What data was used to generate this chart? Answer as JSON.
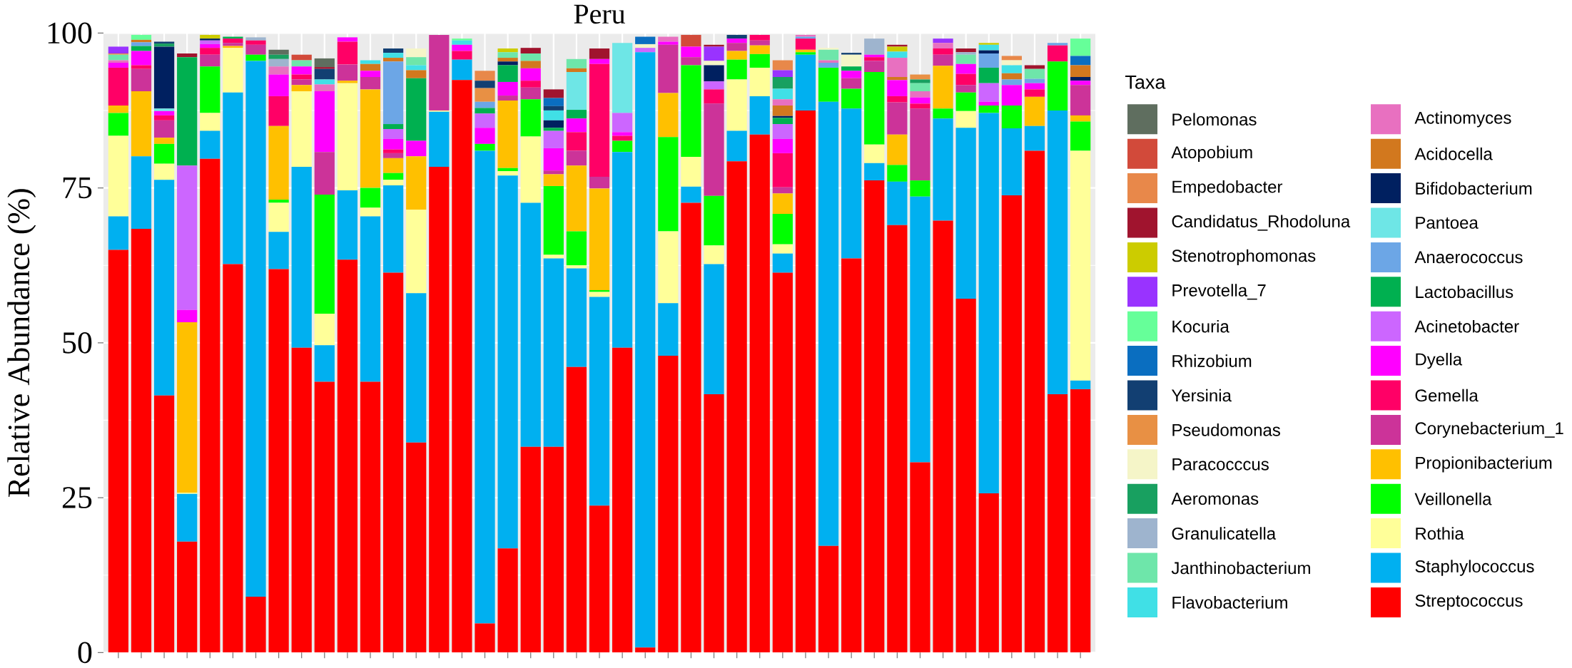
{
  "chart_data": {
    "type": "bar",
    "stacked": true,
    "title": "Peru",
    "ylabel": "Relative Abundance (%)",
    "legend_title": "Taxa",
    "legend": "right",
    "grid": true,
    "tick_labels": "y",
    "categories": [
      null,
      null,
      null,
      null,
      null,
      null,
      null,
      null,
      null,
      null,
      null,
      null,
      null,
      null,
      null,
      null,
      null,
      null,
      null,
      null,
      null,
      null,
      null,
      null,
      null,
      null,
      null,
      null,
      null,
      null,
      null,
      null,
      null,
      null,
      null,
      null,
      null,
      null,
      null,
      null,
      null,
      null,
      null
    ],
    "ylim": [
      0,
      100
    ],
    "yticks": [
      0,
      25,
      50,
      75,
      100
    ],
    "series": [
      {
        "name": "Streptococcus",
        "color": "#FF0000",
        "values": [
          65,
          68.4,
          41.5,
          17.9,
          79.7,
          62.7,
          9.0,
          61.9,
          49.2,
          43.7,
          63.4,
          43.7,
          61.3,
          33.9,
          78.4,
          92.4,
          4.7,
          16.8,
          33.2,
          33.2,
          46.1,
          23.7,
          49.2,
          0.8,
          47.9,
          72.6,
          41.7,
          79.3,
          83.6,
          61.3,
          87.5,
          17.2,
          63.6,
          76.2,
          69.0,
          30.7,
          69.7,
          57.1,
          25.7,
          73.8,
          81.0,
          41.7,
          42.5
        ]
      },
      {
        "name": "Staphylococcus",
        "color": "#00B0F0",
        "values": [
          5.4,
          11.7,
          34.8,
          7.7,
          4.5,
          27.7,
          86.5,
          6.0,
          29.2,
          5.9,
          11.2,
          26.7,
          14.1,
          24.1,
          8.9,
          3.3,
          76.3,
          60.2,
          39.4,
          30.4,
          15.9,
          33.7,
          31.6,
          96.1,
          8.5,
          2.6,
          21.0,
          4.9,
          6.2,
          3.1,
          9.0,
          71.7,
          24.2,
          2.8,
          7.0,
          42.9,
          16.5,
          27.6,
          61.4,
          10.8,
          4.0,
          45.8,
          1.4
        ]
      },
      {
        "name": "Rothia",
        "color": "#FFFF99",
        "values": [
          13,
          0,
          2.6,
          0.2,
          2.9,
          7.2,
          0,
          4.7,
          12.2,
          5.1,
          17.3,
          1.4,
          0.9,
          13.5,
          0.2,
          0,
          0,
          0.7,
          10.7,
          0.6,
          0.5,
          0.8,
          0,
          0,
          11.6,
          4.8,
          3.0,
          8.3,
          4.6,
          1.5,
          0,
          0,
          0,
          3.0,
          0,
          0,
          0,
          2.7,
          0,
          0,
          0,
          0,
          37.1
        ]
      },
      {
        "name": "Veillonella",
        "color": "#00FF00",
        "values": [
          3.7,
          0,
          3.2,
          0,
          7.5,
          0,
          1.0,
          0.5,
          0,
          19.2,
          0,
          3.2,
          1.1,
          0,
          0,
          0,
          1.1,
          0.5,
          6.0,
          11.1,
          5.5,
          0.3,
          1.8,
          0,
          15.2,
          14.8,
          8.0,
          3.2,
          2.2,
          4.9,
          0.4,
          5.5,
          3.2,
          11.7,
          2.7,
          2.6,
          1.6,
          3.0,
          1.2,
          3.7,
          0,
          7.9,
          4.7
        ]
      },
      {
        "name": "Propionibacterium",
        "color": "#FFC000",
        "values": [
          1.2,
          10.5,
          1.0,
          27.5,
          0,
          0.3,
          0,
          11.9,
          1.0,
          0,
          0.4,
          15.9,
          2.4,
          8.6,
          0,
          0,
          0,
          10.9,
          0,
          1.9,
          10.6,
          16.4,
          0,
          0,
          7.1,
          0,
          0,
          1.4,
          1.4,
          3.3,
          0.4,
          0,
          0,
          0,
          4.9,
          0,
          6.9,
          0,
          0,
          0,
          4.7,
          0,
          1.0
        ]
      },
      {
        "name": "Corynebacterium_1",
        "color": "#CC3399",
        "values": [
          0,
          3.6,
          2.8,
          0,
          1.9,
          0.5,
          1.6,
          0,
          0.9,
          6.9,
          2.6,
          2.0,
          0.8,
          0,
          12.2,
          0,
          0,
          0.8,
          1.9,
          0.6,
          2.4,
          1.9,
          0,
          0,
          7.8,
          1.3,
          14.9,
          1.3,
          0.8,
          1.0,
          0,
          0,
          1.7,
          1.8,
          5.2,
          11.6,
          1.8,
          1.2,
          0,
          0,
          0,
          0,
          4.9
        ]
      },
      {
        "name": "Gemella",
        "color": "#FF0066",
        "values": [
          6.1,
          0.6,
          0.8,
          0,
          1.1,
          0.7,
          0.7,
          4.8,
          0.8,
          0,
          3.7,
          0,
          0.6,
          0,
          0,
          1.4,
          0,
          0,
          1.1,
          0,
          3.0,
          18.2,
          0.8,
          0,
          0,
          0,
          2.3,
          0,
          0.9,
          5.5,
          1.8,
          0,
          0,
          0.6,
          1.0,
          0.8,
          1.0,
          1.8,
          0,
          0,
          1.2,
          2.6,
          0
        ]
      },
      {
        "name": "Dyella",
        "color": "#FF00FF",
        "values": [
          0.8,
          2.3,
          0.7,
          2.0,
          0.6,
          0,
          0,
          3.5,
          1.3,
          9.8,
          0.7,
          1.0,
          1.7,
          2.5,
          0,
          1.0,
          2.6,
          2.2,
          2.0,
          3.6,
          2.2,
          0.8,
          0.6,
          0,
          0.5,
          1.7,
          0,
          0.7,
          0,
          2.3,
          0,
          0,
          1.2,
          0.4,
          2.6,
          1.0,
          0,
          1.6,
          0.6,
          3.3,
          1.0,
          0,
          0.7
        ]
      },
      {
        "name": "Acinetobacter",
        "color": "#CC66FF",
        "values": [
          0,
          0,
          0,
          23.3,
          0.6,
          0,
          0,
          0,
          0,
          0,
          0,
          0,
          1.6,
          0,
          0,
          0,
          2.3,
          0,
          0,
          2.8,
          0,
          0,
          3.1,
          0.7,
          0,
          0,
          1.3,
          0,
          0,
          2.4,
          0,
          0,
          0,
          0,
          0,
          0,
          0,
          0,
          3.0,
          0,
          0,
          0,
          0
        ]
      },
      {
        "name": "Lactobacillus",
        "color": "#00B050",
        "values": [
          0,
          0.8,
          0,
          17.5,
          0,
          0.3,
          0,
          0,
          0,
          0,
          0,
          0,
          0.8,
          10.1,
          0,
          0,
          0.9,
          2.7,
          0,
          0.5,
          1.4,
          0,
          0,
          0,
          0,
          0,
          0,
          0,
          0,
          1.0,
          0,
          0,
          0.7,
          0,
          0,
          0,
          0,
          0,
          2.5,
          0,
          0,
          0,
          0
        ]
      },
      {
        "name": "Anaerococcus",
        "color": "#6CA6E6",
        "values": [
          0,
          0.6,
          0,
          0,
          0,
          0,
          0,
          0,
          0,
          0,
          0,
          0,
          10.1,
          0,
          0,
          0,
          1.0,
          0,
          0,
          0,
          0,
          0,
          0,
          0,
          0,
          0,
          0,
          0,
          0,
          0,
          0.3,
          0.8,
          0,
          0,
          0,
          0,
          0,
          0,
          2.3,
          0.9,
          0.7,
          0.4,
          0
        ]
      },
      {
        "name": "Pantoea",
        "color": "#6EE6E6",
        "values": [
          0,
          0,
          0.4,
          0,
          0,
          0,
          0,
          0,
          0,
          0,
          0,
          0,
          0,
          0,
          0,
          0,
          0,
          0,
          0,
          0,
          6.1,
          0,
          11.3,
          0,
          0,
          0,
          0,
          0,
          0,
          0,
          0,
          0,
          0,
          0,
          0,
          0,
          0,
          0,
          0,
          0,
          0,
          0,
          0
        ]
      },
      {
        "name": "Bifidobacterium",
        "color": "#002060",
        "values": [
          0,
          0,
          10.0,
          0,
          0.3,
          0,
          0,
          0,
          0,
          0,
          0,
          0,
          0,
          0,
          0,
          0,
          0,
          0.6,
          0,
          1.2,
          0,
          0,
          0,
          0,
          0,
          0,
          2.6,
          0,
          0,
          0.3,
          0,
          0,
          0,
          0,
          0,
          0,
          0,
          0,
          0.5,
          0,
          0,
          0,
          0.6
        ]
      },
      {
        "name": "Acidocella",
        "color": "#D2781E",
        "values": [
          0,
          0.4,
          0,
          0,
          0,
          0,
          0,
          0,
          0,
          0,
          0,
          1.1,
          0.6,
          1.3,
          0,
          0,
          0,
          0.6,
          1.2,
          0,
          0.6,
          0,
          0,
          0,
          0,
          0,
          0,
          0,
          0,
          1.7,
          0,
          0,
          0,
          0,
          0.5,
          0,
          0,
          0,
          0,
          1.0,
          0,
          0,
          1.9
        ]
      },
      {
        "name": "Actinomyces",
        "color": "#E870C0",
        "values": [
          0.4,
          0,
          0,
          0,
          0,
          0,
          0,
          1.3,
          0,
          1.1,
          0,
          0,
          0,
          0,
          0,
          0,
          0,
          0,
          0,
          0,
          0,
          0,
          0,
          0,
          0.8,
          0,
          0,
          0,
          0,
          1.0,
          0.3,
          0.4,
          0,
          0,
          3.1,
          1.0,
          0.9,
          0,
          0,
          0,
          0,
          0,
          0
        ]
      },
      {
        "name": "Flavobacterium",
        "color": "#40E0E6",
        "values": [
          0,
          0,
          0,
          0,
          0,
          0,
          0,
          0,
          0,
          0.8,
          0,
          0.6,
          0.8,
          0.8,
          0,
          0.7,
          0,
          0,
          0,
          1.6,
          0,
          0,
          0,
          0,
          0,
          0,
          0,
          0,
          0,
          1.7,
          0,
          0,
          0,
          0,
          1.0,
          0,
          0,
          0,
          0.9,
          1.3,
          0,
          0,
          0
        ]
      },
      {
        "name": "Janthinobacterium",
        "color": "#6EE6AA",
        "values": [
          0.9,
          0,
          0,
          0,
          0,
          0,
          0,
          0,
          1.0,
          0,
          0,
          0,
          0,
          1.3,
          0,
          0,
          0,
          0.9,
          1.2,
          0,
          1.5,
          0,
          0,
          0,
          0,
          0,
          0,
          0,
          0,
          0,
          0,
          1.7,
          0,
          0,
          0,
          1.3,
          0,
          1.5,
          0,
          0,
          1.6,
          0,
          0
        ]
      },
      {
        "name": "Granulicatella",
        "color": "#9EB4CE",
        "values": [
          0,
          0,
          0,
          0,
          0,
          0,
          0.5,
          1.2,
          0,
          0,
          0,
          0,
          0,
          0,
          0,
          0,
          0,
          0,
          0,
          0,
          0,
          0,
          0,
          0,
          0,
          0,
          0,
          0,
          0,
          0,
          0,
          0,
          0,
          2.6,
          0,
          0,
          0,
          0.4,
          0,
          0,
          0,
          0,
          0
        ]
      },
      {
        "name": "Aeromonas",
        "color": "#18A060",
        "values": [
          0,
          0,
          0.5,
          0,
          0,
          0,
          0,
          0.7,
          0,
          0,
          0,
          0,
          0,
          0,
          0,
          0,
          0,
          0,
          0,
          0,
          0,
          0,
          0,
          0,
          0,
          0,
          0,
          0,
          0,
          1.9,
          0,
          0,
          0,
          0,
          0,
          0.6,
          0,
          0,
          0,
          0,
          0,
          0,
          0
        ]
      },
      {
        "name": "Paracocccus",
        "color": "#F5F5C8",
        "values": [
          0,
          0,
          0,
          0,
          0,
          0,
          0,
          0,
          0,
          0,
          0,
          0,
          0,
          1.4,
          0,
          0,
          0,
          0,
          0,
          0,
          0,
          0,
          0,
          0.6,
          0,
          0,
          0.7,
          0,
          0,
          0,
          0,
          0.3,
          1.9,
          0,
          0,
          0,
          0,
          0,
          0,
          0.8,
          0,
          0,
          0
        ]
      },
      {
        "name": "Pseudomonas",
        "color": "#E89044",
        "values": [
          0.2,
          0,
          0,
          0,
          0,
          0,
          0,
          0,
          0,
          0,
          0,
          0,
          0,
          0,
          0,
          0,
          2.2,
          0,
          0,
          0,
          0,
          0,
          0,
          0,
          0,
          0,
          0,
          0,
          0,
          0,
          0,
          0,
          0,
          0,
          0,
          0.8,
          0,
          0,
          0,
          0,
          0,
          0,
          0
        ]
      },
      {
        "name": "Yersinia",
        "color": "#123F72",
        "values": [
          0,
          0,
          0.3,
          0,
          0,
          0,
          0,
          0,
          0,
          1.7,
          0,
          0,
          0.7,
          0,
          0,
          0,
          1.2,
          0,
          0,
          0.7,
          0,
          0,
          0,
          0,
          0,
          0,
          0,
          0.6,
          0,
          0,
          0,
          0,
          0.3,
          0,
          0,
          0,
          0,
          0,
          0,
          0,
          0,
          0,
          0
        ]
      },
      {
        "name": "Rhizobium",
        "color": "#0A6EC0",
        "values": [
          0,
          0,
          0,
          0,
          0,
          0,
          0,
          0,
          0,
          0,
          0,
          0,
          0,
          0,
          0,
          0,
          0,
          0,
          0,
          1.3,
          0,
          0,
          0,
          1.2,
          0,
          0,
          0,
          0,
          0,
          0,
          0,
          0,
          0,
          0,
          0,
          0,
          0,
          0,
          0,
          0,
          0,
          0,
          1.5
        ]
      },
      {
        "name": "Kocuria",
        "color": "#66FF99",
        "values": [
          0,
          0.8,
          0,
          0,
          0,
          0,
          0,
          0,
          0,
          0,
          0,
          0,
          0,
          0,
          0,
          0.3,
          0,
          0,
          0,
          0,
          0,
          0,
          0,
          0,
          0,
          0,
          0,
          0,
          0,
          0,
          0,
          0,
          0,
          0,
          0,
          0,
          0,
          0,
          0,
          0,
          0,
          0,
          2.8
        ]
      },
      {
        "name": "Prevotella_7",
        "color": "#9933FF",
        "values": [
          1.1,
          0,
          0,
          0,
          0,
          0,
          0,
          0,
          0,
          0,
          0,
          0,
          0,
          0,
          0,
          0,
          0,
          0,
          0,
          0,
          0,
          0,
          0,
          0,
          0,
          0,
          2.3,
          0,
          0,
          1.1,
          0,
          0,
          0,
          0,
          0,
          0,
          0.7,
          0,
          0,
          0,
          0,
          0,
          0
        ]
      },
      {
        "name": "Stenotrophomonas",
        "color": "#CCCC00",
        "values": [
          0,
          0,
          0,
          0,
          0.6,
          0,
          0,
          0,
          0,
          0,
          0,
          0,
          0,
          0,
          0,
          0,
          0,
          0.6,
          0,
          0,
          0,
          0,
          0,
          0,
          0,
          0,
          0,
          0,
          0,
          0,
          0,
          0,
          0,
          0,
          0.8,
          0,
          0,
          0,
          0.3,
          0,
          0,
          0,
          0
        ]
      },
      {
        "name": "Candidatus_Rhodoluna",
        "color": "#A0142E",
        "values": [
          0,
          0,
          0,
          0.6,
          0,
          0,
          0,
          0,
          0,
          0.3,
          0,
          0,
          0,
          0,
          0,
          0,
          0,
          0,
          0.9,
          1.4,
          0,
          1.7,
          0,
          0,
          0,
          0,
          0.3,
          0,
          0,
          0,
          0,
          0,
          0,
          0,
          0.3,
          0,
          0,
          0.6,
          0,
          0,
          0.6,
          0,
          0
        ]
      },
      {
        "name": "Empedobacter",
        "color": "#E8884A",
        "values": [
          0,
          0,
          0,
          0,
          0,
          0,
          0,
          0,
          0,
          0,
          0,
          0,
          0,
          0,
          0,
          0,
          1.6,
          0,
          0,
          0,
          0,
          0,
          0,
          0,
          0,
          0,
          0,
          0,
          0,
          1.6,
          0,
          0,
          0,
          0,
          0,
          0,
          0,
          0,
          0,
          0.7,
          0,
          0,
          0
        ]
      },
      {
        "name": "Atopobium",
        "color": "#D24A3A",
        "values": [
          0,
          0,
          0,
          0,
          0,
          0,
          0,
          0,
          0.9,
          0,
          0,
          0,
          0,
          0,
          0,
          0,
          0,
          0,
          0,
          0,
          0,
          0,
          0,
          0,
          0,
          1.9,
          0,
          0,
          0,
          0,
          0,
          0,
          0,
          0,
          0,
          0,
          0,
          0,
          0,
          0,
          0,
          0,
          0
        ]
      },
      {
        "name": "Pelomonas",
        "color": "#5F6E5F",
        "values": [
          0,
          0,
          0,
          0,
          0,
          0,
          0,
          0.8,
          0,
          1.4,
          0,
          0,
          0,
          0,
          0,
          0,
          0,
          0,
          0,
          0,
          0,
          0,
          0,
          0,
          0,
          0,
          0,
          0,
          0,
          0,
          0,
          0,
          0,
          0,
          0,
          0,
          0,
          0,
          0,
          0,
          0,
          0,
          0
        ]
      }
    ]
  }
}
